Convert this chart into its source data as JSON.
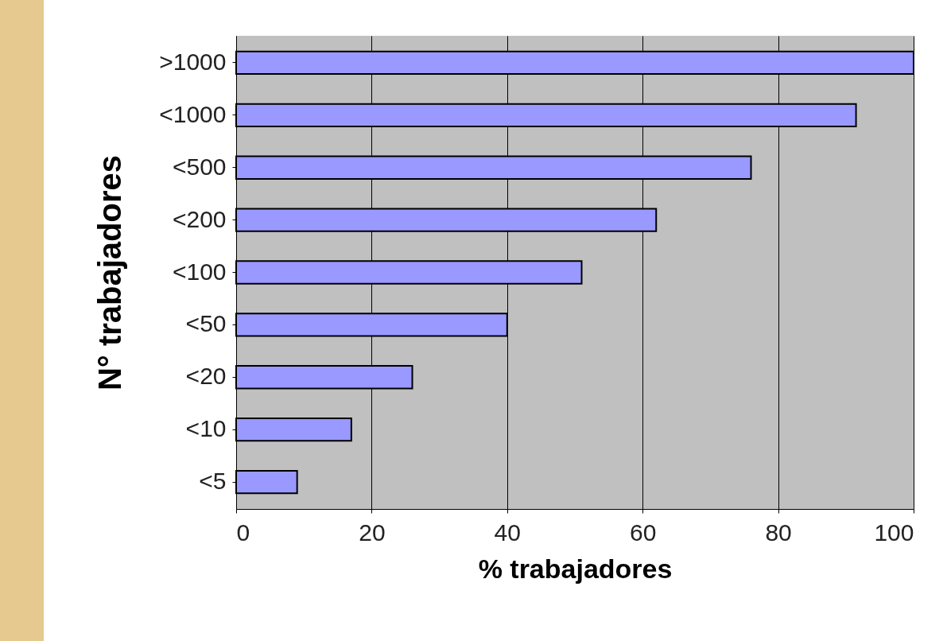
{
  "chart_data": {
    "type": "bar",
    "orientation": "horizontal",
    "xlabel": "% trabajadores",
    "ylabel": "N° trabajadores",
    "categories": [
      ">1000",
      "<1000",
      "<500",
      "<200",
      "<100",
      "<50",
      "<20",
      "<10",
      "<5"
    ],
    "values": [
      100,
      91.5,
      76,
      62,
      51,
      40,
      26,
      17,
      9
    ],
    "color": "#9999ff",
    "xlim": [
      0,
      100
    ],
    "xticks": [
      0,
      20,
      40,
      60,
      80,
      100
    ],
    "grid": "x"
  }
}
